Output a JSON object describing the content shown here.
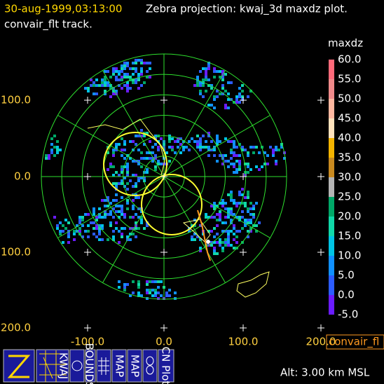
{
  "header": {
    "time": "30-aug-1999,03:13:00",
    "title": "Zebra projection: kwaj_3d maxdz plot.",
    "subtitle": "convair_flt track."
  },
  "axes": {
    "x_labels": [
      "-100.0",
      "0.0",
      "100.0",
      "200.0"
    ],
    "y_labels": [
      "100.0",
      "0.0",
      "100.0",
      "200.0"
    ]
  },
  "colorbar": {
    "title": "maxdz",
    "labels": [
      "60.0",
      "55.0",
      "50.0",
      "45.0",
      "40.0",
      "35.0",
      "30.0",
      "25.0",
      "20.0",
      "15.0",
      "10.0",
      "5.0",
      "0.0",
      "-5.0"
    ],
    "colors": [
      "#ff6a7a",
      "#f08a8a",
      "#ffb8a0",
      "#ffe2bc",
      "#f4b400",
      "#c88a20",
      "#b4b4b4",
      "#00a868",
      "#10d8a8",
      "#00c4e4",
      "#1090ff",
      "#2c5cff",
      "#6a1cff"
    ]
  },
  "overlay_label": "convair_fl",
  "altitude": "Alt: 3.00 km MSL",
  "icons": [
    "KWAJ",
    "BOUNDS",
    "MAP",
    "MAP",
    "CN Plot"
  ]
}
